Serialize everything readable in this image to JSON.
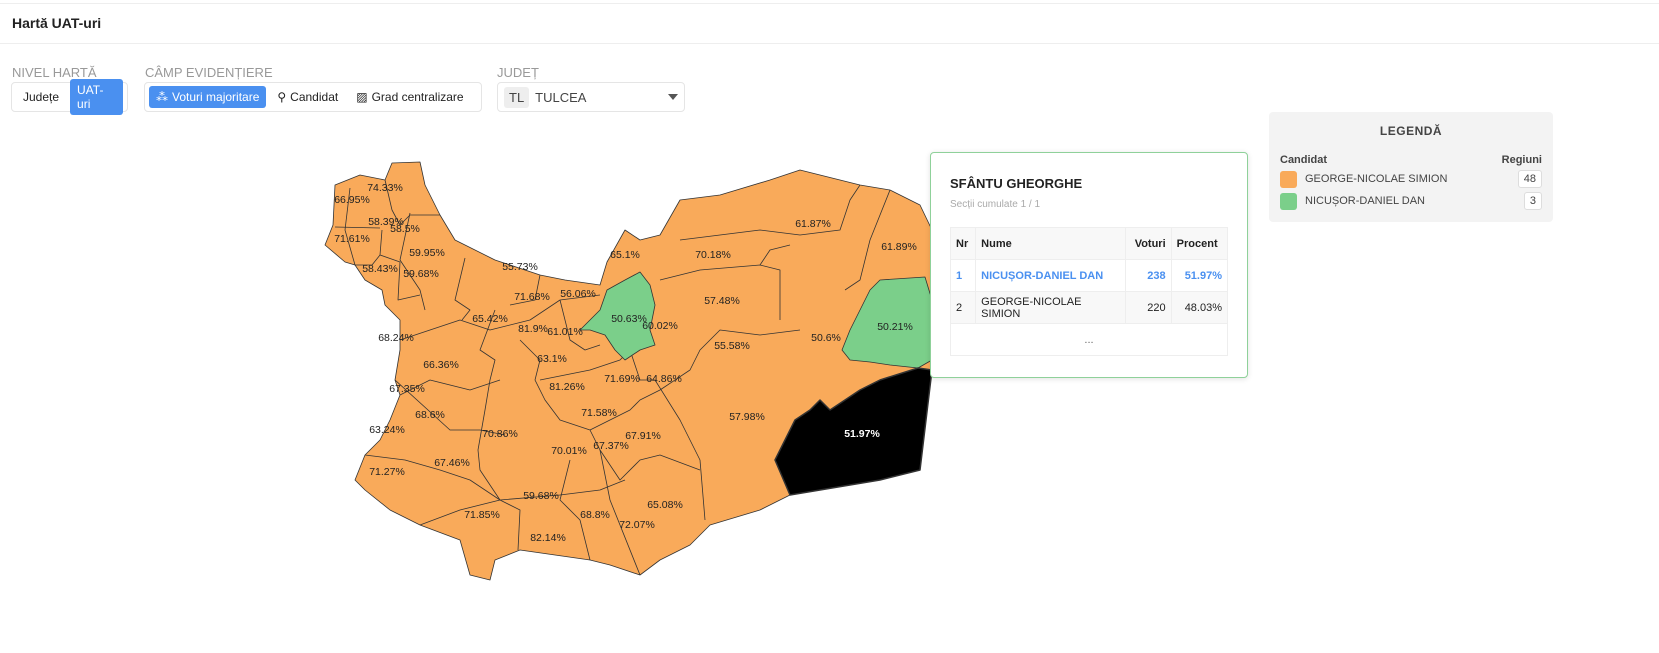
{
  "header": {
    "title": "Hartă UAT-uri"
  },
  "controls": {
    "level_label": "NIVEL HARTĂ",
    "level_options": [
      "Județe",
      "UAT-uri"
    ],
    "level_selected": "UAT-uri",
    "field_label": "CÂMP EVIDENȚIERE",
    "field_options": [
      "Voturi majoritare",
      "Candidat",
      "Grad centralizare"
    ],
    "field_selected": "Voturi majoritare",
    "county_label": "JUDEȚ",
    "county_code": "TL",
    "county_value": "TULCEA"
  },
  "colors": {
    "simion": "#f9aa5a",
    "dan": "#7bcf8a",
    "selected": "#000000",
    "accent": "#4a90f0"
  },
  "map": {
    "labels": [
      "74.33%",
      "66.95%",
      "58.39%",
      "58.5%",
      "71.61%",
      "59.95%",
      "58.43%",
      "55.73%",
      "59.68%",
      "71.68%",
      "56.06%",
      "65.42%",
      "81.9%",
      "61.01%",
      "68.24%",
      "66.36%",
      "63.1%",
      "71.69%",
      "67.35%",
      "81.26%",
      "71.58%",
      "68.6%",
      "63.24%",
      "70.86%",
      "70.01%",
      "67.37%",
      "67.91%",
      "67.46%",
      "71.27%",
      "59.68%",
      "71.85%",
      "68.8%",
      "72.07%",
      "82.14%",
      "65.08%",
      "65.1%",
      "70.18%",
      "61.87%",
      "61.89%",
      "57.48%",
      "50.63%",
      "60.02%",
      "55.58%",
      "50.6%",
      "50.21%",
      "64.86%",
      "57.98%",
      "51.97%"
    ]
  },
  "tooltip": {
    "title": "SFÂNTU GHEORGHE",
    "subtitle": "Secții cumulate 1 / 1",
    "columns": [
      "Nr",
      "Nume",
      "Voturi",
      "Procent"
    ],
    "rows": [
      {
        "nr": "1",
        "name": "NICUȘOR-DANIEL DAN",
        "votes": "238",
        "pct": "51.97%"
      },
      {
        "nr": "2",
        "name": "GEORGE-NICOLAE SIMION",
        "votes": "220",
        "pct": "48.03%"
      }
    ],
    "more": "..."
  },
  "legend": {
    "title": "LEGENDĂ",
    "col_candidate": "Candidat",
    "col_regions": "Regiuni",
    "items": [
      {
        "name": "GEORGE-NICOLAE SIMION",
        "count": "48",
        "color": "#f9aa5a"
      },
      {
        "name": "NICUȘOR-DANIEL DAN",
        "count": "3",
        "color": "#7bcf8a"
      }
    ]
  }
}
